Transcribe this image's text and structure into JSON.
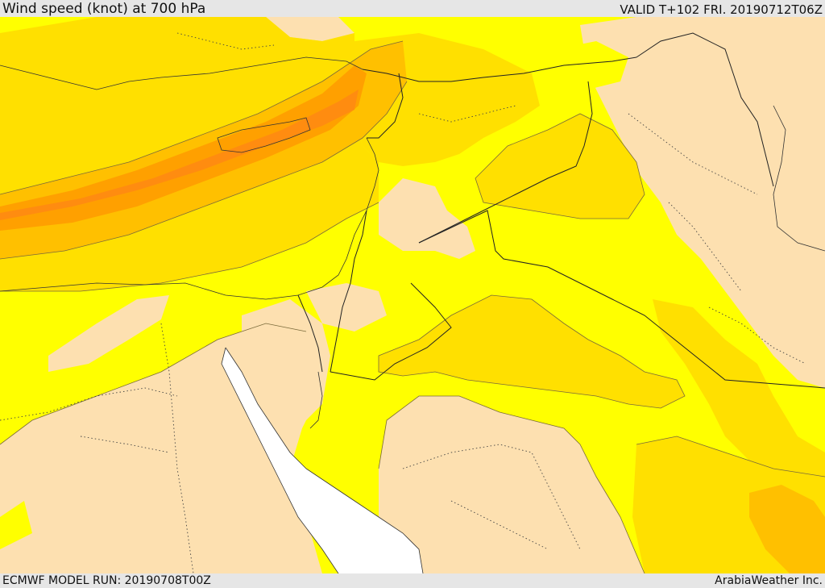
{
  "header": {
    "title": "Wind speed (knot) at 700 hPa",
    "valid": "VALID T+102 FRI. 20190712T06Z"
  },
  "footer": {
    "run": "ECMWF MODEL RUN: 20190708T00Z",
    "credit": "ArabiaWeather Inc."
  },
  "colors": {
    "band_calm": "#fde0b0",
    "band_low": "#ffff00",
    "band_mid": "#ffe000",
    "band_high": "#ffc000",
    "band_higher": "#ffa000",
    "band_peak": "#ff8c10",
    "water": "#ffffff"
  }
}
